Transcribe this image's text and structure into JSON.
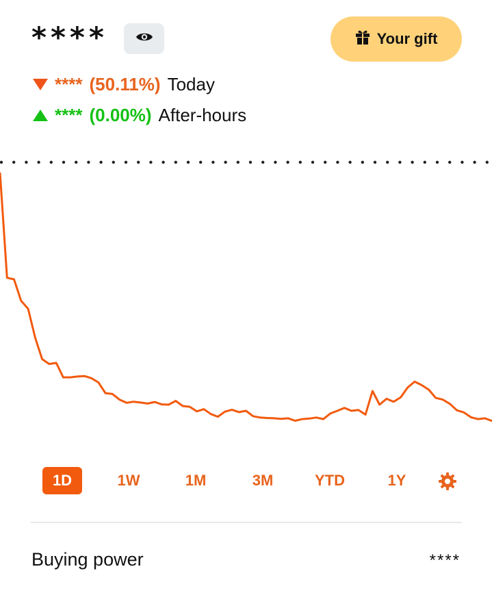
{
  "header": {
    "balance_masked": "****",
    "gift_button_label": "Your gift",
    "visibility_icon": "eye-icon",
    "gift_icon": "gift-icon"
  },
  "changes": {
    "today": {
      "direction": "down",
      "amount_masked": "****",
      "percent": "(50.11%)",
      "label": "Today"
    },
    "after_hours": {
      "direction": "up",
      "amount_masked": "****",
      "percent": "(0.00%)",
      "label": "After-hours"
    }
  },
  "colors": {
    "accent": "#f25a0e",
    "negative": "#e8641e",
    "positive": "#16c116",
    "gift_bg": "#ffd27a"
  },
  "chart_data": {
    "type": "line",
    "baseline": "dotted reference line (previous close)",
    "y_relative": [
      100,
      60.7,
      60.1,
      52.1,
      49.1,
      38.3,
      30.3,
      28.5,
      28.9,
      23.5,
      23.5,
      23.8,
      24.0,
      23.2,
      21.6,
      17.6,
      17.3,
      15.2,
      14.0,
      14.4,
      14.1,
      13.7,
      14.3,
      13.4,
      13.3,
      14.7,
      12.8,
      12.5,
      10.8,
      11.6,
      9.8,
      8.8,
      10.7,
      11.4,
      10.5,
      11.0,
      9.0,
      8.5,
      8.3,
      8.2,
      8.0,
      8.2,
      7.3,
      7.9,
      8.1,
      8.5,
      7.9,
      10.0,
      11.0,
      12.1,
      11.0,
      11.3,
      9.6,
      18.4,
      13.3,
      15.5,
      14.4,
      16.0,
      19.7,
      21.9,
      20.6,
      18.9,
      15.8,
      15.2,
      13.6,
      11.2,
      10.4,
      8.6,
      7.9,
      8.2,
      7.2
    ],
    "ranges": [
      "1D",
      "1W",
      "1M",
      "3M",
      "YTD",
      "1Y"
    ],
    "selected_range": "1D"
  },
  "range_tabs": [
    "1D",
    "1W",
    "1M",
    "3M",
    "YTD",
    "1Y"
  ],
  "settings_icon": "gear-icon",
  "buying_power": {
    "label": "Buying power",
    "value_masked": "****"
  }
}
